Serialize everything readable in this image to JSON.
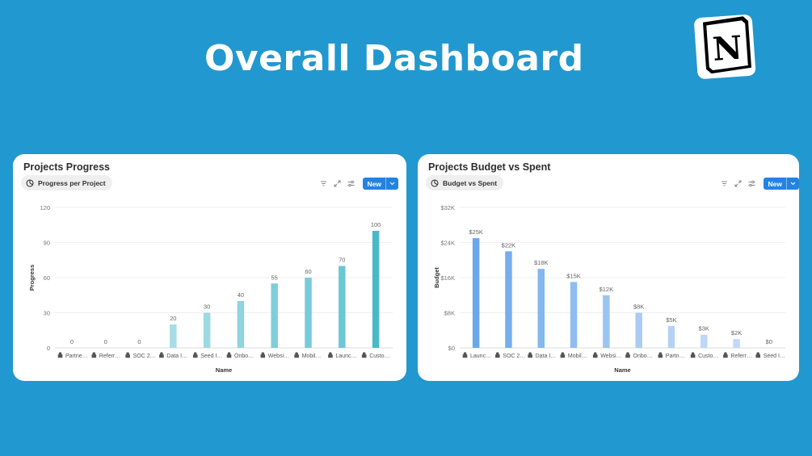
{
  "page": {
    "title": "Overall Dashboard",
    "logo_letter": "N"
  },
  "charts": [
    {
      "card_title": "Projects Progress",
      "view_label": "Progress per Project",
      "new_label": "New",
      "xlabel": "Name",
      "ylabel": "Progress",
      "y_ticks": [
        "0",
        "30",
        "60",
        "90",
        "120"
      ],
      "categories": [
        "Partne…",
        "Referr…",
        "SOC 2…",
        "Data I…",
        "Seed I…",
        "Onbo…",
        "Websi…",
        "Mobil…",
        "Launc…",
        "Custo…"
      ],
      "value_labels": [
        "0",
        "0",
        "0",
        "20",
        "30",
        "40",
        "55",
        "60",
        "70",
        "100"
      ],
      "colors": {
        "low": "#bfe6ee",
        "high": "#49b9c9"
      }
    },
    {
      "card_title": "Projects Budget vs Spent",
      "view_label": "Budget vs Spent",
      "new_label": "New",
      "xlabel": "Name",
      "ylabel": "Budget",
      "y_ticks": [
        "$0",
        "$8K",
        "$16K",
        "$24K",
        "$32K"
      ],
      "categories": [
        "Launc…",
        "SOC 2…",
        "Data I…",
        "Mobil…",
        "Websi…",
        "Onbo…",
        "Partn…",
        "Custo…",
        "Referr…",
        "Seed I…"
      ],
      "value_labels": [
        "$25K",
        "$22K",
        "$18K",
        "$15K",
        "$12K",
        "$8K",
        "$5K",
        "$3K",
        "$2K",
        "$0"
      ],
      "colors": {
        "high": "#6aa8ea",
        "low": "#c8ddf8"
      }
    }
  ],
  "chart_data": [
    {
      "type": "bar",
      "title": "Projects Progress",
      "xlabel": "Name",
      "ylabel": "Progress",
      "categories": [
        "Partne…",
        "Referr…",
        "SOC 2…",
        "Data I…",
        "Seed I…",
        "Onbo…",
        "Websi…",
        "Mobil…",
        "Launc…",
        "Custo…"
      ],
      "values": [
        0,
        0,
        0,
        20,
        30,
        40,
        55,
        60,
        70,
        100
      ],
      "ylim": [
        0,
        120
      ],
      "grid": true
    },
    {
      "type": "bar",
      "title": "Projects Budget vs Spent",
      "xlabel": "Name",
      "ylabel": "Budget",
      "categories": [
        "Launc…",
        "SOC 2…",
        "Data I…",
        "Mobil…",
        "Websi…",
        "Onbo…",
        "Partn…",
        "Custo…",
        "Referr…",
        "Seed I…"
      ],
      "values": [
        25000,
        22000,
        18000,
        15000,
        12000,
        8000,
        5000,
        3000,
        2000,
        0
      ],
      "ylim": [
        0,
        32000
      ],
      "grid": true
    }
  ]
}
